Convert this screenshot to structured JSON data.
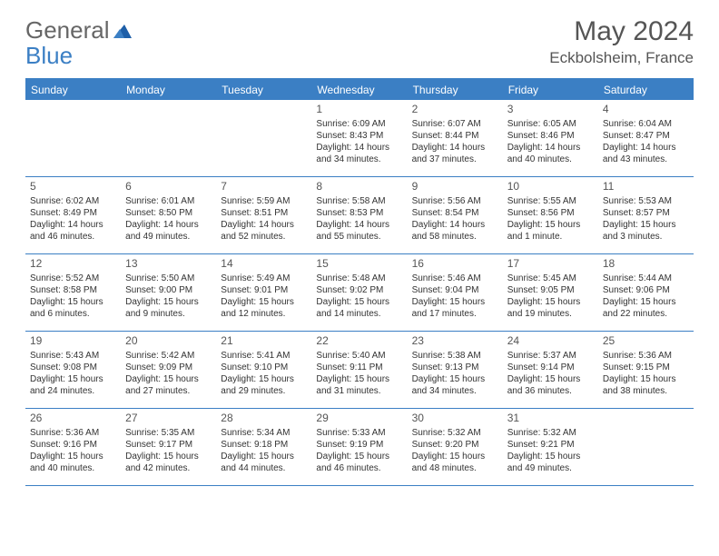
{
  "logo": {
    "text1": "General",
    "text2": "Blue"
  },
  "title": "May 2024",
  "location": "Eckbolsheim, France",
  "colors": {
    "header_bg": "#3b7fc4",
    "header_text": "#ffffff",
    "text": "#333333",
    "title_text": "#555555",
    "border": "#3b7fc4",
    "background": "#ffffff"
  },
  "typography": {
    "title_fontsize": 30,
    "location_fontsize": 17,
    "dayheader_fontsize": 12,
    "daynum_fontsize": 12,
    "body_fontsize": 10
  },
  "day_headers": [
    "Sunday",
    "Monday",
    "Tuesday",
    "Wednesday",
    "Thursday",
    "Friday",
    "Saturday"
  ],
  "weeks": [
    [
      {
        "n": "",
        "sr": "",
        "ss": "",
        "d1": "",
        "d2": ""
      },
      {
        "n": "",
        "sr": "",
        "ss": "",
        "d1": "",
        "d2": ""
      },
      {
        "n": "",
        "sr": "",
        "ss": "",
        "d1": "",
        "d2": ""
      },
      {
        "n": "1",
        "sr": "Sunrise: 6:09 AM",
        "ss": "Sunset: 8:43 PM",
        "d1": "Daylight: 14 hours",
        "d2": "and 34 minutes."
      },
      {
        "n": "2",
        "sr": "Sunrise: 6:07 AM",
        "ss": "Sunset: 8:44 PM",
        "d1": "Daylight: 14 hours",
        "d2": "and 37 minutes."
      },
      {
        "n": "3",
        "sr": "Sunrise: 6:05 AM",
        "ss": "Sunset: 8:46 PM",
        "d1": "Daylight: 14 hours",
        "d2": "and 40 minutes."
      },
      {
        "n": "4",
        "sr": "Sunrise: 6:04 AM",
        "ss": "Sunset: 8:47 PM",
        "d1": "Daylight: 14 hours",
        "d2": "and 43 minutes."
      }
    ],
    [
      {
        "n": "5",
        "sr": "Sunrise: 6:02 AM",
        "ss": "Sunset: 8:49 PM",
        "d1": "Daylight: 14 hours",
        "d2": "and 46 minutes."
      },
      {
        "n": "6",
        "sr": "Sunrise: 6:01 AM",
        "ss": "Sunset: 8:50 PM",
        "d1": "Daylight: 14 hours",
        "d2": "and 49 minutes."
      },
      {
        "n": "7",
        "sr": "Sunrise: 5:59 AM",
        "ss": "Sunset: 8:51 PM",
        "d1": "Daylight: 14 hours",
        "d2": "and 52 minutes."
      },
      {
        "n": "8",
        "sr": "Sunrise: 5:58 AM",
        "ss": "Sunset: 8:53 PM",
        "d1": "Daylight: 14 hours",
        "d2": "and 55 minutes."
      },
      {
        "n": "9",
        "sr": "Sunrise: 5:56 AM",
        "ss": "Sunset: 8:54 PM",
        "d1": "Daylight: 14 hours",
        "d2": "and 58 minutes."
      },
      {
        "n": "10",
        "sr": "Sunrise: 5:55 AM",
        "ss": "Sunset: 8:56 PM",
        "d1": "Daylight: 15 hours",
        "d2": "and 1 minute."
      },
      {
        "n": "11",
        "sr": "Sunrise: 5:53 AM",
        "ss": "Sunset: 8:57 PM",
        "d1": "Daylight: 15 hours",
        "d2": "and 3 minutes."
      }
    ],
    [
      {
        "n": "12",
        "sr": "Sunrise: 5:52 AM",
        "ss": "Sunset: 8:58 PM",
        "d1": "Daylight: 15 hours",
        "d2": "and 6 minutes."
      },
      {
        "n": "13",
        "sr": "Sunrise: 5:50 AM",
        "ss": "Sunset: 9:00 PM",
        "d1": "Daylight: 15 hours",
        "d2": "and 9 minutes."
      },
      {
        "n": "14",
        "sr": "Sunrise: 5:49 AM",
        "ss": "Sunset: 9:01 PM",
        "d1": "Daylight: 15 hours",
        "d2": "and 12 minutes."
      },
      {
        "n": "15",
        "sr": "Sunrise: 5:48 AM",
        "ss": "Sunset: 9:02 PM",
        "d1": "Daylight: 15 hours",
        "d2": "and 14 minutes."
      },
      {
        "n": "16",
        "sr": "Sunrise: 5:46 AM",
        "ss": "Sunset: 9:04 PM",
        "d1": "Daylight: 15 hours",
        "d2": "and 17 minutes."
      },
      {
        "n": "17",
        "sr": "Sunrise: 5:45 AM",
        "ss": "Sunset: 9:05 PM",
        "d1": "Daylight: 15 hours",
        "d2": "and 19 minutes."
      },
      {
        "n": "18",
        "sr": "Sunrise: 5:44 AM",
        "ss": "Sunset: 9:06 PM",
        "d1": "Daylight: 15 hours",
        "d2": "and 22 minutes."
      }
    ],
    [
      {
        "n": "19",
        "sr": "Sunrise: 5:43 AM",
        "ss": "Sunset: 9:08 PM",
        "d1": "Daylight: 15 hours",
        "d2": "and 24 minutes."
      },
      {
        "n": "20",
        "sr": "Sunrise: 5:42 AM",
        "ss": "Sunset: 9:09 PM",
        "d1": "Daylight: 15 hours",
        "d2": "and 27 minutes."
      },
      {
        "n": "21",
        "sr": "Sunrise: 5:41 AM",
        "ss": "Sunset: 9:10 PM",
        "d1": "Daylight: 15 hours",
        "d2": "and 29 minutes."
      },
      {
        "n": "22",
        "sr": "Sunrise: 5:40 AM",
        "ss": "Sunset: 9:11 PM",
        "d1": "Daylight: 15 hours",
        "d2": "and 31 minutes."
      },
      {
        "n": "23",
        "sr": "Sunrise: 5:38 AM",
        "ss": "Sunset: 9:13 PM",
        "d1": "Daylight: 15 hours",
        "d2": "and 34 minutes."
      },
      {
        "n": "24",
        "sr": "Sunrise: 5:37 AM",
        "ss": "Sunset: 9:14 PM",
        "d1": "Daylight: 15 hours",
        "d2": "and 36 minutes."
      },
      {
        "n": "25",
        "sr": "Sunrise: 5:36 AM",
        "ss": "Sunset: 9:15 PM",
        "d1": "Daylight: 15 hours",
        "d2": "and 38 minutes."
      }
    ],
    [
      {
        "n": "26",
        "sr": "Sunrise: 5:36 AM",
        "ss": "Sunset: 9:16 PM",
        "d1": "Daylight: 15 hours",
        "d2": "and 40 minutes."
      },
      {
        "n": "27",
        "sr": "Sunrise: 5:35 AM",
        "ss": "Sunset: 9:17 PM",
        "d1": "Daylight: 15 hours",
        "d2": "and 42 minutes."
      },
      {
        "n": "28",
        "sr": "Sunrise: 5:34 AM",
        "ss": "Sunset: 9:18 PM",
        "d1": "Daylight: 15 hours",
        "d2": "and 44 minutes."
      },
      {
        "n": "29",
        "sr": "Sunrise: 5:33 AM",
        "ss": "Sunset: 9:19 PM",
        "d1": "Daylight: 15 hours",
        "d2": "and 46 minutes."
      },
      {
        "n": "30",
        "sr": "Sunrise: 5:32 AM",
        "ss": "Sunset: 9:20 PM",
        "d1": "Daylight: 15 hours",
        "d2": "and 48 minutes."
      },
      {
        "n": "31",
        "sr": "Sunrise: 5:32 AM",
        "ss": "Sunset: 9:21 PM",
        "d1": "Daylight: 15 hours",
        "d2": "and 49 minutes."
      },
      {
        "n": "",
        "sr": "",
        "ss": "",
        "d1": "",
        "d2": ""
      }
    ]
  ]
}
